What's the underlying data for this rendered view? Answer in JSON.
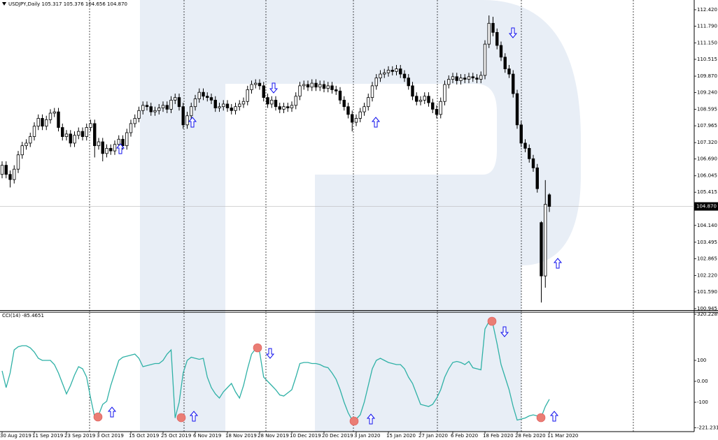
{
  "chart_data": [
    {
      "type": "candlestick",
      "title": "USDJPY,Daily  105.317 105.376 104.656 104.870",
      "last_price_label": "104.870",
      "up_color": "#ffffff",
      "down_color": "#000000",
      "outline_color": "#000000",
      "ylim": [
        100.89,
        112.74
      ],
      "yticks": [
        {
          "value": 112.42,
          "label": "112.420"
        },
        {
          "value": 111.79,
          "label": "111.790"
        },
        {
          "value": 111.15,
          "label": "111.150"
        },
        110.515,
        {
          "value": 109.87,
          "label": "109.870"
        },
        {
          "value": 109.24,
          "label": "109.240"
        },
        108.595,
        107.965,
        {
          "value": 107.32,
          "label": "107.320"
        },
        {
          "value": 106.69,
          "label": "106.690"
        },
        106.045,
        105.415,
        {
          "value": 104.14,
          "label": "104.140"
        },
        103.495,
        102.865,
        {
          "value": 102.22,
          "label": "102.220"
        },
        {
          "value": 101.59,
          "label": "101.590"
        },
        100.945
      ],
      "open": [
        106.1,
        106.45,
        106.1,
        105.9,
        106.3,
        106.85,
        107.2,
        107.3,
        107.55,
        107.95,
        108.25,
        107.95,
        108.2,
        108.45,
        108.5,
        107.9,
        107.55,
        107.65,
        107.3,
        107.6,
        107.75,
        107.55,
        107.9,
        108.05,
        107.2,
        107.35,
        106.9,
        107.1,
        107.0,
        107.25,
        107.45,
        107.2,
        107.7,
        108.05,
        108.25,
        108.55,
        108.75,
        108.7,
        108.5,
        108.55,
        108.65,
        108.75,
        108.6,
        108.95,
        109.05,
        108.7,
        108.0,
        108.35,
        108.7,
        109.0,
        109.25,
        109.1,
        109.05,
        108.95,
        108.65,
        108.7,
        108.8,
        108.65,
        108.55,
        108.7,
        108.8,
        108.9,
        109.35,
        109.55,
        109.6,
        109.5,
        109.05,
        108.8,
        108.95,
        108.7,
        108.6,
        108.7,
        108.65,
        108.75,
        109.1,
        109.5,
        109.55,
        109.45,
        109.6,
        109.45,
        109.55,
        109.4,
        109.5,
        109.35,
        109.3,
        108.95,
        108.7,
        108.4,
        108.1,
        108.25,
        108.5,
        108.7,
        109.05,
        109.5,
        109.8,
        109.95,
        110.0,
        110.1,
        110.05,
        110.15,
        109.95,
        109.8,
        109.5,
        109.1,
        108.9,
        108.95,
        109.1,
        108.85,
        108.6,
        108.4,
        108.9,
        109.55,
        109.75,
        109.85,
        109.7,
        109.8,
        109.75,
        109.85,
        109.8,
        109.75,
        109.9,
        111.1,
        111.9,
        111.55,
        111.05,
        110.6,
        110.15,
        109.95,
        109.2,
        108.0,
        107.3,
        107.1,
        106.7,
        106.35,
        104.25,
        102.2,
        105.317
      ],
      "high": [
        106.6,
        106.6,
        106.25,
        106.45,
        107.0,
        107.35,
        107.45,
        107.7,
        108.1,
        108.4,
        108.4,
        108.35,
        108.6,
        108.65,
        108.65,
        108.05,
        107.8,
        107.8,
        107.75,
        107.9,
        107.9,
        108.05,
        108.2,
        108.2,
        107.5,
        107.5,
        107.25,
        107.25,
        107.4,
        107.6,
        107.6,
        107.85,
        108.2,
        108.4,
        108.7,
        108.9,
        108.9,
        108.85,
        108.7,
        108.8,
        108.9,
        108.9,
        109.1,
        109.2,
        109.2,
        108.85,
        108.5,
        108.85,
        109.15,
        109.4,
        109.4,
        109.25,
        109.2,
        109.1,
        108.85,
        108.95,
        108.95,
        108.8,
        108.85,
        108.95,
        109.05,
        109.5,
        109.7,
        109.75,
        109.75,
        109.65,
        109.2,
        109.1,
        109.1,
        108.85,
        108.85,
        108.85,
        108.9,
        109.25,
        109.65,
        109.7,
        109.7,
        109.75,
        109.75,
        109.7,
        109.7,
        109.65,
        109.65,
        109.5,
        109.45,
        109.1,
        108.85,
        108.55,
        108.4,
        108.65,
        108.85,
        109.2,
        109.65,
        109.95,
        110.1,
        110.15,
        110.25,
        110.25,
        110.3,
        110.3,
        110.1,
        109.95,
        109.65,
        109.25,
        109.1,
        109.25,
        109.25,
        109.0,
        108.75,
        109.05,
        109.7,
        109.9,
        110.0,
        110.0,
        109.95,
        109.95,
        110.0,
        110.0,
        109.95,
        110.05,
        111.25,
        112.2,
        112.15,
        111.7,
        111.2,
        110.75,
        110.3,
        110.1,
        109.35,
        108.15,
        107.45,
        107.25,
        106.85,
        106.5,
        104.3,
        105.88,
        105.376
      ],
      "low": [
        105.95,
        105.95,
        105.6,
        105.75,
        106.15,
        106.7,
        107.05,
        107.15,
        107.4,
        107.8,
        107.8,
        107.8,
        108.05,
        108.3,
        107.75,
        107.4,
        107.4,
        107.15,
        107.15,
        107.45,
        107.4,
        107.4,
        107.75,
        106.75,
        107.05,
        106.6,
        106.75,
        106.85,
        106.85,
        107.1,
        107.05,
        107.05,
        107.55,
        107.9,
        108.1,
        108.4,
        108.55,
        108.35,
        108.35,
        108.4,
        108.5,
        108.45,
        108.45,
        108.8,
        108.55,
        107.85,
        107.85,
        108.2,
        108.55,
        108.85,
        108.95,
        108.9,
        108.8,
        108.5,
        108.5,
        108.55,
        108.5,
        108.4,
        108.4,
        108.55,
        108.65,
        108.75,
        109.2,
        109.4,
        109.35,
        108.9,
        108.65,
        108.65,
        108.55,
        108.45,
        108.45,
        108.5,
        108.5,
        108.6,
        108.95,
        109.35,
        109.3,
        109.3,
        109.3,
        109.3,
        109.25,
        109.25,
        109.2,
        109.15,
        108.8,
        108.55,
        108.25,
        107.75,
        107.95,
        108.1,
        108.35,
        108.55,
        108.9,
        109.35,
        109.65,
        109.8,
        109.85,
        109.9,
        109.9,
        109.8,
        109.65,
        109.35,
        108.95,
        108.75,
        108.75,
        108.8,
        108.7,
        108.45,
        108.25,
        108.25,
        108.75,
        109.4,
        109.6,
        109.55,
        109.55,
        109.6,
        109.6,
        109.65,
        109.6,
        109.6,
        109.75,
        110.95,
        111.4,
        110.9,
        110.45,
        110.0,
        109.8,
        109.05,
        107.85,
        107.15,
        106.95,
        106.55,
        106.2,
        105.4,
        101.18,
        101.75,
        104.656
      ],
      "close": [
        106.45,
        106.1,
        105.9,
        106.3,
        106.85,
        107.2,
        107.3,
        107.55,
        107.95,
        108.25,
        107.95,
        108.2,
        108.45,
        108.5,
        107.9,
        107.55,
        107.65,
        107.3,
        107.6,
        107.75,
        107.55,
        107.9,
        108.05,
        107.2,
        107.35,
        106.9,
        107.1,
        107.0,
        107.25,
        107.45,
        107.2,
        107.7,
        108.05,
        108.25,
        108.55,
        108.75,
        108.7,
        108.5,
        108.55,
        108.65,
        108.75,
        108.6,
        108.95,
        109.05,
        108.7,
        108.0,
        108.35,
        108.7,
        109.0,
        109.25,
        109.1,
        109.05,
        108.95,
        108.65,
        108.7,
        108.8,
        108.65,
        108.55,
        108.7,
        108.8,
        108.9,
        109.35,
        109.55,
        109.6,
        109.5,
        109.05,
        108.8,
        108.95,
        108.7,
        108.6,
        108.7,
        108.65,
        108.75,
        109.1,
        109.5,
        109.55,
        109.45,
        109.6,
        109.45,
        109.55,
        109.4,
        109.5,
        109.35,
        109.3,
        108.95,
        108.7,
        108.4,
        108.1,
        108.25,
        108.5,
        108.7,
        109.05,
        109.5,
        109.8,
        109.95,
        110.0,
        110.1,
        110.05,
        110.15,
        109.95,
        109.8,
        109.5,
        109.1,
        108.9,
        108.95,
        109.1,
        108.85,
        108.6,
        108.4,
        108.9,
        109.55,
        109.75,
        109.85,
        109.7,
        109.8,
        109.75,
        109.85,
        109.8,
        109.75,
        109.9,
        111.1,
        111.9,
        111.55,
        111.05,
        110.6,
        110.15,
        109.95,
        109.2,
        108.0,
        107.3,
        107.1,
        106.7,
        106.35,
        105.55,
        102.2,
        104.95,
        104.87
      ]
    },
    {
      "type": "line",
      "title": "CCI(14) -85.4651",
      "color": "#2fb1a6",
      "ylim": [
        -240,
        326.7
      ],
      "yticks": [
        320.2289,
        100,
        {
          "value": 0,
          "label": "0.00"
        },
        -100,
        -221.2313
      ],
      "categories": [
        "30 Aug 2019",
        null,
        null,
        null,
        null,
        null,
        null,
        null,
        "11 Sep 2019",
        null,
        null,
        null,
        null,
        null,
        null,
        null,
        "23 Sep 2019",
        null,
        null,
        null,
        null,
        null,
        null,
        null,
        "3 Oct 2019",
        null,
        null,
        null,
        null,
        null,
        null,
        null,
        "15 Oct 2019",
        null,
        null,
        null,
        null,
        null,
        null,
        null,
        "25 Oct 2019",
        null,
        null,
        null,
        null,
        null,
        null,
        null,
        "6 Nov 2019",
        null,
        null,
        null,
        null,
        null,
        null,
        null,
        "18 Nov 2019",
        null,
        null,
        null,
        null,
        null,
        null,
        null,
        "28 Nov 2019",
        null,
        null,
        null,
        null,
        null,
        null,
        null,
        "10 Dec 2019",
        null,
        null,
        null,
        null,
        null,
        null,
        null,
        "20 Dec 2019",
        null,
        null,
        null,
        null,
        null,
        null,
        null,
        "3 Jan 2020",
        null,
        null,
        null,
        null,
        null,
        null,
        null,
        "15 Jan 2020",
        null,
        null,
        null,
        null,
        null,
        null,
        null,
        "27 Jan 2020",
        null,
        null,
        null,
        null,
        null,
        null,
        null,
        "6 Feb 2020",
        null,
        null,
        null,
        null,
        null,
        null,
        null,
        "18 Feb 2020",
        null,
        null,
        null,
        null,
        null,
        null,
        null,
        "28 Feb 2020",
        null,
        null,
        null,
        null,
        null,
        null,
        null,
        "11 Mar 2020"
      ],
      "values": [
        50,
        -30,
        40,
        150,
        165,
        170,
        170,
        160,
        140,
        110,
        100,
        100,
        100,
        80,
        40,
        -10,
        -60,
        -20,
        30,
        70,
        60,
        20,
        -80,
        -170,
        -160,
        -110,
        -95,
        -20,
        40,
        100,
        115,
        120,
        125,
        130,
        110,
        70,
        75,
        80,
        85,
        85,
        100,
        130,
        150,
        -175,
        -100,
        40,
        100,
        115,
        110,
        105,
        110,
        20,
        -30,
        -60,
        -80,
        -50,
        -30,
        -10,
        -50,
        -80,
        -20,
        60,
        130,
        155,
        140,
        20,
        0,
        -20,
        -40,
        -65,
        -70,
        -55,
        -40,
        20,
        85,
        90,
        90,
        85,
        85,
        80,
        70,
        65,
        40,
        10,
        -40,
        -100,
        -150,
        -185,
        -180,
        -160,
        -100,
        -20,
        60,
        100,
        110,
        100,
        90,
        85,
        80,
        80,
        60,
        20,
        -10,
        -60,
        -110,
        -115,
        -120,
        -110,
        -80,
        -40,
        20,
        60,
        90,
        95,
        90,
        80,
        95,
        65,
        60,
        55,
        250,
        285,
        270,
        180,
        80,
        20,
        -40,
        -120,
        -185,
        -180,
        -175,
        -165,
        -160,
        -165,
        -170,
        -120,
        -85.4651
      ]
    }
  ]
}
